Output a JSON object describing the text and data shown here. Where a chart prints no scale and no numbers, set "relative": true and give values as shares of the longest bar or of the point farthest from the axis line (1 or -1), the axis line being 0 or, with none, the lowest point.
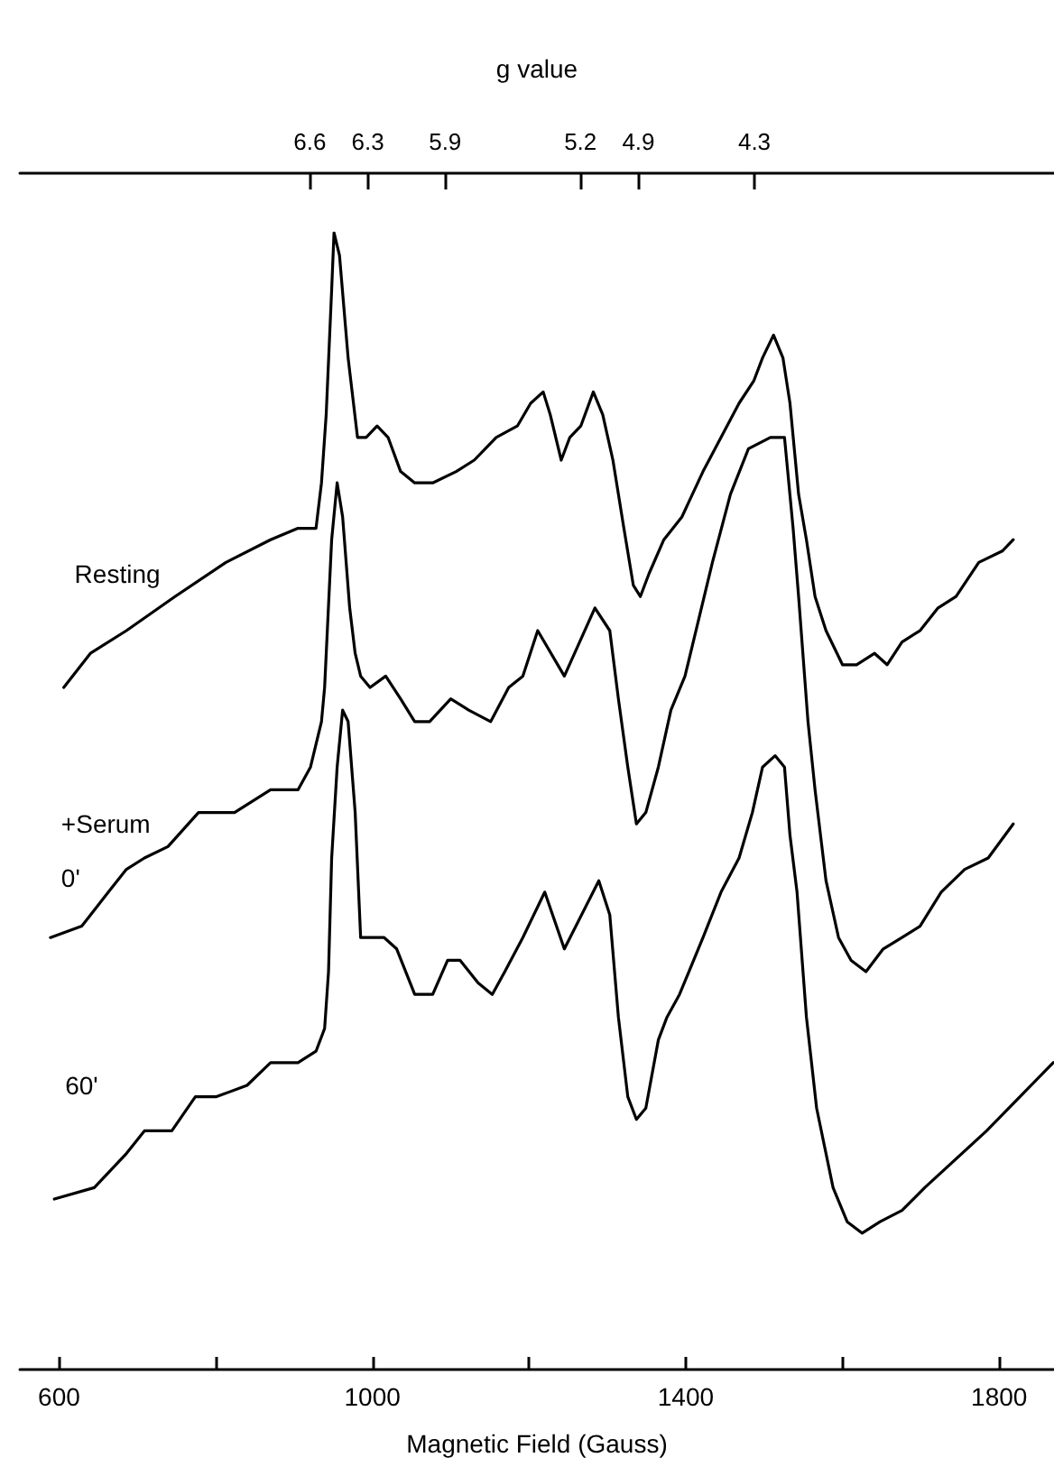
{
  "chart_data": {
    "type": "line",
    "relative": true,
    "xlabel": "Magnetic Field (Gauss)",
    "x2label": "g value",
    "xlim": [
      550,
      1870
    ],
    "xticks": [
      600,
      {
        "value": 800,
        "label": null
      },
      1000,
      {
        "value": 1200,
        "label": null
      },
      1400,
      {
        "value": 1600,
        "label": null
      },
      1800
    ],
    "x2lim": [
      8.1,
      2.75
    ],
    "x2ticks": [
      6.6,
      6.3,
      5.9,
      5.2,
      4.9,
      4.3
    ],
    "grid": false,
    "legend": false,
    "marker": "none",
    "line_style": "solid",
    "series": [
      {
        "name": "Resting",
        "color": "#000000",
        "x": [
          606,
          640,
          686,
          748,
          813,
          870,
          905,
          928,
          935,
          941,
          948,
          951,
          958,
          969,
          981,
          992,
          1006,
          1020,
          1036,
          1054,
          1077,
          1107,
          1130,
          1158,
          1185,
          1202,
          1218,
          1227,
          1241,
          1252,
          1266,
          1282,
          1294,
          1307,
          1321,
          1333,
          1342,
          1353,
          1372,
          1395,
          1422,
          1445,
          1468,
          1487,
          1498,
          1512,
          1524,
          1533,
          1544,
          1554,
          1565,
          1579,
          1600,
          1618,
          1641,
          1657,
          1676,
          1699,
          1722,
          1745,
          1774,
          1804,
          1818
        ],
        "values": [
          0.6,
          0.63,
          0.65,
          0.68,
          0.71,
          0.73,
          0.74,
          0.74,
          0.78,
          0.84,
          0.95,
          1,
          0.98,
          0.89,
          0.82,
          0.82,
          0.83,
          0.82,
          0.79,
          0.78,
          0.78,
          0.79,
          0.8,
          0.82,
          0.83,
          0.85,
          0.86,
          0.84,
          0.8,
          0.82,
          0.83,
          0.86,
          0.84,
          0.8,
          0.74,
          0.69,
          0.68,
          0.7,
          0.73,
          0.75,
          0.79,
          0.82,
          0.85,
          0.87,
          0.89,
          0.91,
          0.89,
          0.85,
          0.77,
          0.73,
          0.68,
          0.65,
          0.62,
          0.62,
          0.63,
          0.62,
          0.64,
          0.65,
          0.67,
          0.68,
          0.71,
          0.72,
          0.73
        ]
      },
      {
        "name": "+Serum\n0'",
        "color": "#000000",
        "x": [
          589,
          629,
          663,
          686,
          709,
          739,
          778,
          824,
          870,
          905,
          921,
          935,
          939,
          948,
          955,
          962,
          971,
          978,
          985,
          997,
          1017,
          1036,
          1054,
          1073,
          1100,
          1123,
          1151,
          1174,
          1192,
          1211,
          1245,
          1284,
          1303,
          1314,
          1326,
          1337,
          1349,
          1365,
          1381,
          1399,
          1434,
          1457,
          1480,
          1508,
          1526,
          1537,
          1544,
          1556,
          1565,
          1579,
          1595,
          1611,
          1630,
          1652,
          1676,
          1699,
          1726,
          1756,
          1786,
          1818
        ],
        "values": [
          0.38,
          0.39,
          0.42,
          0.44,
          0.45,
          0.46,
          0.49,
          0.49,
          0.51,
          0.51,
          0.53,
          0.57,
          0.6,
          0.73,
          0.78,
          0.75,
          0.67,
          0.63,
          0.61,
          0.6,
          0.61,
          0.59,
          0.57,
          0.57,
          0.59,
          0.58,
          0.57,
          0.6,
          0.61,
          0.65,
          0.61,
          0.67,
          0.65,
          0.59,
          0.53,
          0.48,
          0.49,
          0.53,
          0.58,
          0.61,
          0.71,
          0.77,
          0.81,
          0.82,
          0.82,
          0.74,
          0.68,
          0.57,
          0.51,
          0.43,
          0.38,
          0.36,
          0.35,
          0.37,
          0.38,
          0.39,
          0.42,
          0.44,
          0.45,
          0.48
        ]
      },
      {
        "name": "60'",
        "color": "#000000",
        "x": [
          594,
          645,
          686,
          709,
          744,
          774,
          801,
          840,
          870,
          905,
          928,
          939,
          944,
          948,
          955,
          962,
          969,
          978,
          985,
          997,
          1015,
          1031,
          1054,
          1077,
          1096,
          1112,
          1135,
          1153,
          1169,
          1192,
          1220,
          1245,
          1289,
          1303,
          1314,
          1326,
          1337,
          1349,
          1365,
          1376,
          1392,
          1422,
          1445,
          1468,
          1485,
          1498,
          1514,
          1526,
          1533,
          1542,
          1554,
          1567,
          1588,
          1606,
          1625,
          1648,
          1676,
          1705,
          1784,
          1869
        ],
        "values": [
          0.15,
          0.16,
          0.19,
          0.21,
          0.21,
          0.24,
          0.24,
          0.25,
          0.27,
          0.27,
          0.28,
          0.3,
          0.35,
          0.45,
          0.53,
          0.58,
          0.57,
          0.49,
          0.38,
          0.38,
          0.38,
          0.37,
          0.33,
          0.33,
          0.36,
          0.36,
          0.34,
          0.33,
          0.35,
          0.38,
          0.42,
          0.37,
          0.43,
          0.4,
          0.31,
          0.24,
          0.22,
          0.23,
          0.29,
          0.31,
          0.33,
          0.38,
          0.42,
          0.45,
          0.49,
          0.53,
          0.54,
          0.53,
          0.47,
          0.42,
          0.31,
          0.23,
          0.16,
          0.13,
          0.12,
          0.13,
          0.14,
          0.16,
          0.21,
          0.27
        ]
      }
    ]
  }
}
